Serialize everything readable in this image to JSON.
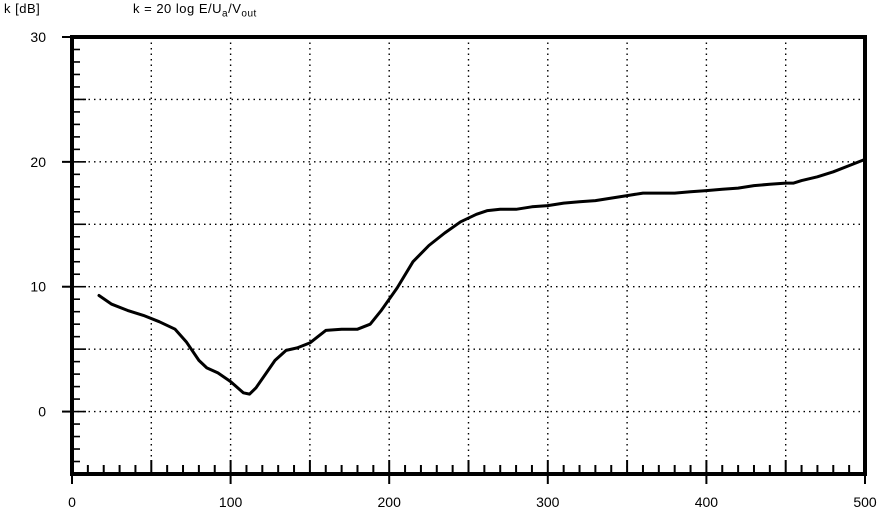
{
  "chart_data": {
    "type": "line",
    "title": "",
    "ylabel": "k [dB]",
    "formula": "k = 20 log E/Ua/Vout",
    "formula_parts": {
      "prefix": "k  =  20 log E/U",
      "sub1": "a",
      "mid": "/V",
      "sub2": "out"
    },
    "xlabel": "",
    "xlim": [
      0,
      500
    ],
    "ylim": [
      -5,
      30
    ],
    "x_ticks": [
      0,
      100,
      200,
      300,
      400,
      500
    ],
    "x_tick_labels": [
      "0",
      "100",
      "200",
      "300",
      "400",
      "500"
    ],
    "y_ticks": [
      0,
      10,
      20,
      30
    ],
    "y_tick_labels": [
      "0",
      "10",
      "20",
      "30"
    ],
    "grid": true,
    "grid_x": [
      50,
      100,
      150,
      200,
      250,
      300,
      350,
      400,
      450
    ],
    "grid_y": [
      0,
      5,
      10,
      15,
      20,
      25
    ],
    "series": [
      {
        "x": [
          17,
          25,
          35,
          45,
          55,
          65,
          72,
          80,
          85,
          92,
          100,
          108,
          112,
          116,
          122,
          128,
          135,
          142,
          150,
          155,
          160,
          170,
          180,
          188,
          195,
          205,
          215,
          225,
          235,
          245,
          255,
          262,
          270,
          280,
          290,
          300,
          310,
          320,
          330,
          340,
          350,
          360,
          370,
          380,
          390,
          400,
          410,
          420,
          430,
          440,
          450,
          455,
          460,
          470,
          480,
          490,
          500
        ],
        "y": [
          9.3,
          8.6,
          8.1,
          7.7,
          7.2,
          6.6,
          5.6,
          4.1,
          3.5,
          3.1,
          2.4,
          1.5,
          1.4,
          1.9,
          3.0,
          4.1,
          4.9,
          5.1,
          5.5,
          6.0,
          6.5,
          6.6,
          6.6,
          7.0,
          8.1,
          9.9,
          12.0,
          13.3,
          14.3,
          15.2,
          15.8,
          16.1,
          16.2,
          16.2,
          16.4,
          16.5,
          16.7,
          16.8,
          16.9,
          17.1,
          17.3,
          17.5,
          17.5,
          17.5,
          17.6,
          17.7,
          17.8,
          17.9,
          18.1,
          18.2,
          18.3,
          18.3,
          18.5,
          18.8,
          19.2,
          19.7,
          20.2
        ]
      }
    ]
  }
}
